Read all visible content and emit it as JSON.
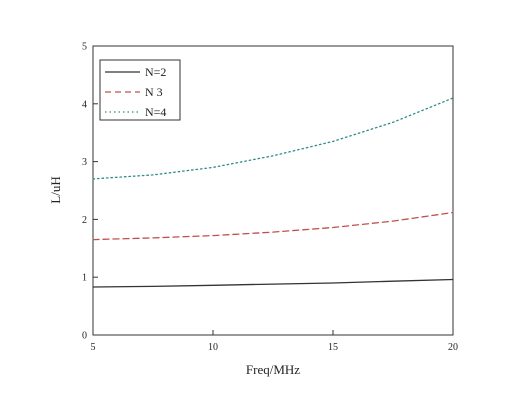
{
  "chart_data": {
    "type": "line",
    "title": "",
    "xlabel": "Freq/MHz",
    "ylabel": "L/uH",
    "xlim": [
      5,
      20
    ],
    "ylim": [
      0,
      5
    ],
    "xticks": [
      5,
      10,
      15,
      20
    ],
    "xtick_labels": [
      "5",
      "10",
      "15",
      "20"
    ],
    "yticks": [
      0,
      1,
      2,
      3,
      4,
      5
    ],
    "ytick_labels": [
      "0",
      "1",
      "2",
      "3",
      "4",
      "5"
    ],
    "grid": false,
    "legend_position": "top-left",
    "series": [
      {
        "name": "N=2",
        "style": "solid",
        "color": "#333333",
        "x": [
          5,
          7.5,
          10,
          12.5,
          15,
          17.5,
          20
        ],
        "y": [
          0.83,
          0.84,
          0.86,
          0.88,
          0.9,
          0.93,
          0.96
        ]
      },
      {
        "name": "N 3",
        "style": "dashed",
        "color": "#c0504d",
        "x": [
          5,
          7.5,
          10,
          12.5,
          15,
          17.5,
          20
        ],
        "y": [
          1.65,
          1.68,
          1.72,
          1.78,
          1.86,
          1.97,
          2.12
        ]
      },
      {
        "name": "N=4",
        "style": "dotted",
        "color": "#2e8b8b",
        "x": [
          5,
          7.5,
          10,
          12.5,
          15,
          17.5,
          20
        ],
        "y": [
          2.7,
          2.77,
          2.9,
          3.1,
          3.35,
          3.68,
          4.1
        ]
      }
    ]
  }
}
